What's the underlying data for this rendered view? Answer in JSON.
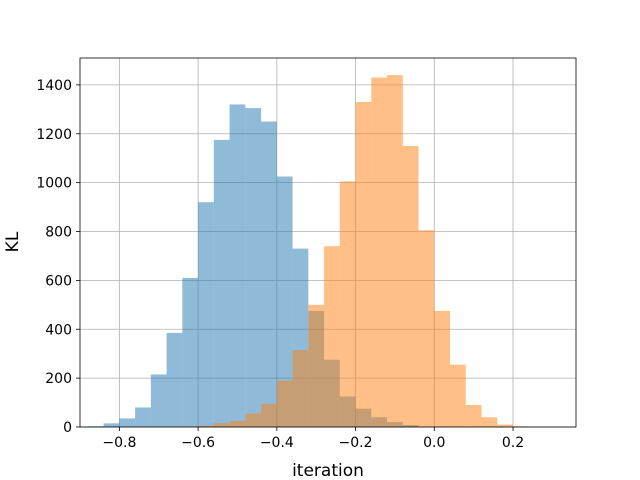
{
  "chart_data": {
    "type": "bar",
    "subtype": "overlapping-histogram",
    "title": "",
    "xlabel": "iteration",
    "ylabel": "KL",
    "xlim": [
      -0.9,
      0.36
    ],
    "ylim": [
      0,
      1510
    ],
    "grid": true,
    "x_ticks": [
      -0.8,
      -0.6,
      -0.4,
      -0.2,
      0.0,
      0.2
    ],
    "x_tick_labels": [
      "−0.8",
      "−0.6",
      "−0.4",
      "−0.2",
      "0.0",
      "0.2"
    ],
    "y_ticks": [
      0,
      200,
      400,
      600,
      800,
      1000,
      1200,
      1400
    ],
    "y_tick_labels": [
      "0",
      "200",
      "400",
      "600",
      "800",
      "1000",
      "1200",
      "1400"
    ],
    "series": [
      {
        "color": "#1f77b4",
        "alpha": 0.5,
        "bin_edges": [
          -0.88,
          -0.84,
          -0.8,
          -0.76,
          -0.72,
          -0.68,
          -0.64,
          -0.6,
          -0.56,
          -0.52,
          -0.48,
          -0.44,
          -0.4,
          -0.36,
          -0.32,
          -0.28,
          -0.24,
          -0.2,
          -0.16,
          -0.12,
          -0.08,
          -0.04,
          0.0
        ],
        "values": [
          3,
          15,
          35,
          80,
          215,
          385,
          610,
          920,
          1175,
          1320,
          1305,
          1250,
          1025,
          730,
          475,
          275,
          125,
          75,
          40,
          20,
          8,
          2
        ]
      },
      {
        "color": "#ff7f0e",
        "alpha": 0.5,
        "bin_edges": [
          -0.64,
          -0.6,
          -0.56,
          -0.52,
          -0.48,
          -0.44,
          -0.4,
          -0.36,
          -0.32,
          -0.28,
          -0.24,
          -0.2,
          -0.16,
          -0.12,
          -0.08,
          -0.04,
          0.0,
          0.04,
          0.08,
          0.12,
          0.16,
          0.2,
          0.24,
          0.28,
          0.32
        ],
        "values": [
          2,
          5,
          15,
          25,
          55,
          95,
          190,
          315,
          500,
          740,
          1005,
          1330,
          1430,
          1440,
          1150,
          805,
          475,
          255,
          90,
          40,
          10,
          3,
          1,
          0
        ]
      }
    ]
  }
}
